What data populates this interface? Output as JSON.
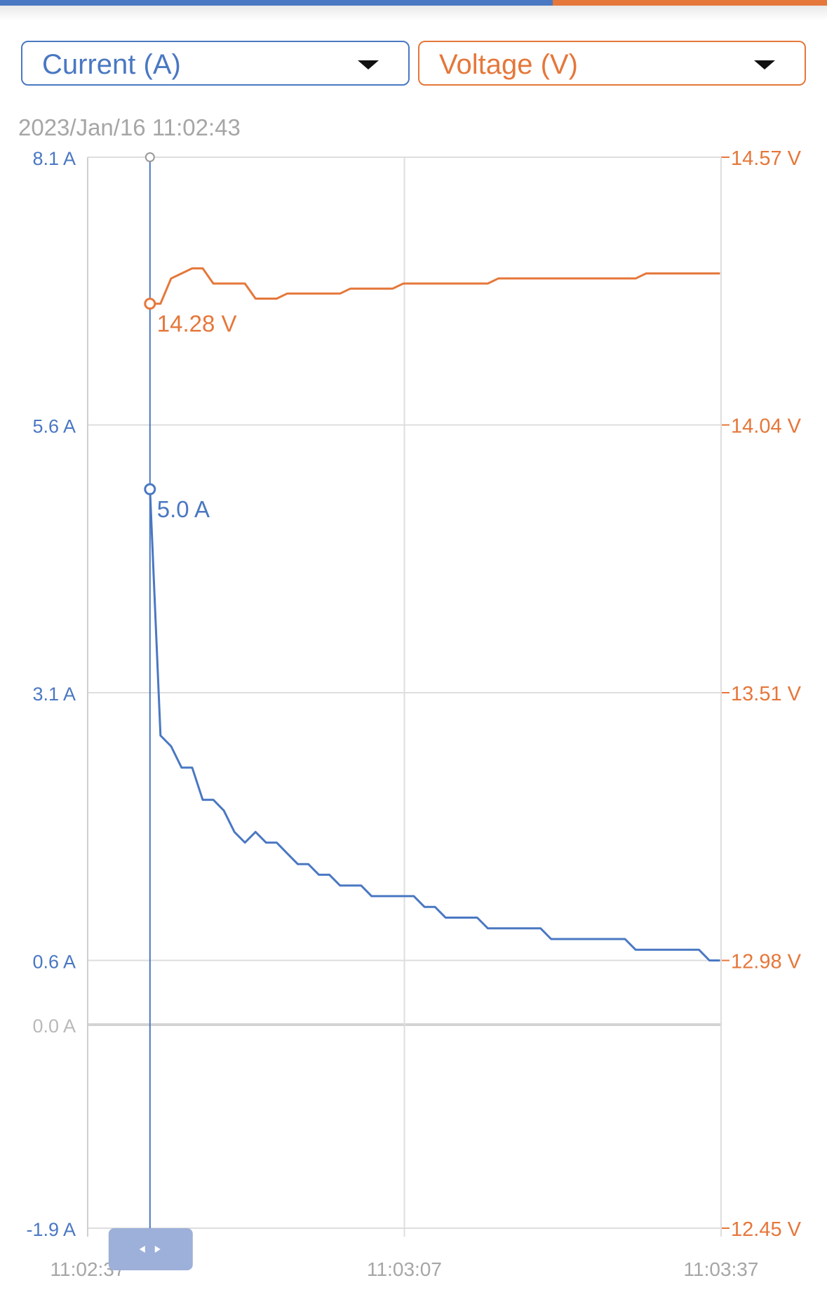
{
  "colors": {
    "current": "#4a78c2",
    "voltage": "#e5773a",
    "grid": "#dedede",
    "muted": "#a6a6a6",
    "handle": "#9db0d9"
  },
  "selectors": {
    "left": {
      "label": "Current (A)"
    },
    "right": {
      "label": "Voltage (V)"
    }
  },
  "chart_data": {
    "type": "line",
    "cursor_timestamp": "2023/Jan/16 11:02:43",
    "x": {
      "ticks": [
        "11:02:37",
        "11:03:07",
        "11:03:37"
      ],
      "range_seconds": [
        0,
        60
      ]
    },
    "y_left": {
      "unit": "A",
      "range": [
        -1.9,
        8.1
      ],
      "ticks": [
        {
          "value": 8.1,
          "label": "8.1 A"
        },
        {
          "value": 5.6,
          "label": "5.6 A"
        },
        {
          "value": 3.1,
          "label": "3.1 A"
        },
        {
          "value": 0.6,
          "label": "0.6 A"
        },
        {
          "value": 0.0,
          "label": "0.0 A"
        },
        {
          "value": -1.9,
          "label": "-1.9 A"
        }
      ]
    },
    "y_right": {
      "unit": "V",
      "range": [
        12.45,
        14.57
      ],
      "ticks": [
        {
          "value": 14.57,
          "label": "14.57 V"
        },
        {
          "value": 14.04,
          "label": "14.04 V"
        },
        {
          "value": 13.51,
          "label": "13.51 V"
        },
        {
          "value": 12.98,
          "label": "12.98 V"
        },
        {
          "value": 12.45,
          "label": "12.45 V"
        }
      ]
    },
    "series": [
      {
        "name": "Current (A)",
        "axis": "left",
        "t": [
          5.9,
          6.9,
          7.9,
          8.9,
          9.9,
          10.9,
          11.9,
          12.9,
          13.9,
          14.9,
          15.9,
          16.9,
          17.9,
          18.9,
          19.9,
          20.9,
          21.9,
          22.9,
          23.9,
          24.9,
          25.9,
          26.9,
          27.9,
          28.9,
          29.9,
          30.9,
          31.9,
          32.9,
          33.9,
          34.9,
          35.9,
          36.9,
          37.9,
          38.9,
          39.9,
          40.9,
          41.9,
          42.9,
          43.9,
          44.9,
          45.9,
          46.9,
          47.9,
          48.9,
          49.9,
          50.9,
          51.9,
          52.9,
          53.9,
          54.9,
          55.9,
          56.9,
          57.9,
          58.9,
          59.9
        ],
        "values": [
          5.0,
          2.7,
          2.6,
          2.4,
          2.4,
          2.1,
          2.1,
          2.0,
          1.8,
          1.7,
          1.8,
          1.7,
          1.7,
          1.6,
          1.5,
          1.5,
          1.4,
          1.4,
          1.3,
          1.3,
          1.3,
          1.2,
          1.2,
          1.2,
          1.2,
          1.2,
          1.1,
          1.1,
          1.0,
          1.0,
          1.0,
          1.0,
          0.9,
          0.9,
          0.9,
          0.9,
          0.9,
          0.9,
          0.8,
          0.8,
          0.8,
          0.8,
          0.8,
          0.8,
          0.8,
          0.8,
          0.7,
          0.7,
          0.7,
          0.7,
          0.7,
          0.7,
          0.7,
          0.6,
          0.6
        ],
        "cursor_value": 5.0,
        "cursor_label": "5.0 A"
      },
      {
        "name": "Voltage (V)",
        "axis": "right",
        "t": [
          5.9,
          6.9,
          7.9,
          8.9,
          9.9,
          10.9,
          11.9,
          12.9,
          13.9,
          14.9,
          15.9,
          16.9,
          17.9,
          18.9,
          19.9,
          20.9,
          21.9,
          22.9,
          23.9,
          24.9,
          25.9,
          26.9,
          27.9,
          28.9,
          29.9,
          30.9,
          31.9,
          32.9,
          33.9,
          34.9,
          35.9,
          36.9,
          37.9,
          38.9,
          39.9,
          40.9,
          41.9,
          42.9,
          43.9,
          44.9,
          45.9,
          46.9,
          47.9,
          48.9,
          49.9,
          50.9,
          51.9,
          52.9,
          53.9,
          54.9,
          55.9,
          56.9,
          57.9,
          58.9,
          59.9
        ],
        "values": [
          14.28,
          14.28,
          14.33,
          14.34,
          14.35,
          14.35,
          14.32,
          14.32,
          14.32,
          14.32,
          14.29,
          14.29,
          14.29,
          14.3,
          14.3,
          14.3,
          14.3,
          14.3,
          14.3,
          14.31,
          14.31,
          14.31,
          14.31,
          14.31,
          14.32,
          14.32,
          14.32,
          14.32,
          14.32,
          14.32,
          14.32,
          14.32,
          14.32,
          14.33,
          14.33,
          14.33,
          14.33,
          14.33,
          14.33,
          14.33,
          14.33,
          14.33,
          14.33,
          14.33,
          14.33,
          14.33,
          14.33,
          14.34,
          14.34,
          14.34,
          14.34,
          14.34,
          14.34,
          14.34,
          14.34
        ],
        "cursor_value": 14.28,
        "cursor_label": "14.28 V"
      }
    ]
  }
}
